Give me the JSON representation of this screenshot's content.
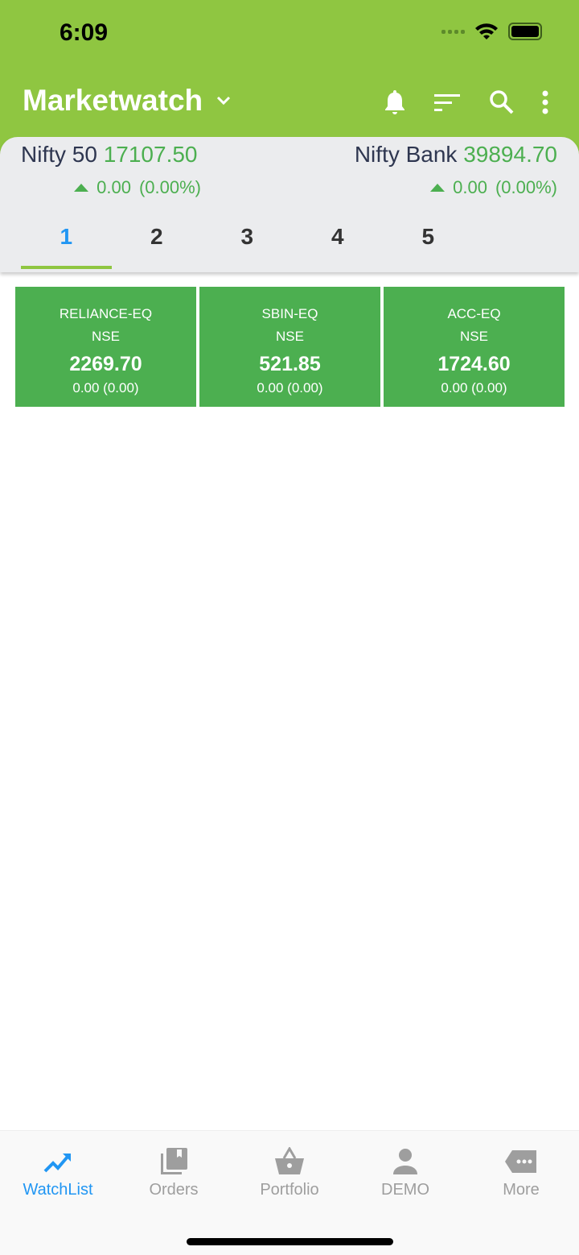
{
  "status": {
    "time": "6:09"
  },
  "header": {
    "title": "Marketwatch"
  },
  "indices": [
    {
      "name": "Nifty 50",
      "value": "17107.50",
      "change": "0.00",
      "pct": "(0.00%)"
    },
    {
      "name": "Nifty Bank",
      "value": "39894.70",
      "change": "0.00",
      "pct": "(0.00%)"
    }
  ],
  "tabs": [
    "1",
    "2",
    "3",
    "4",
    "5"
  ],
  "cards": [
    {
      "symbol": "RELIANCE-EQ",
      "exchange": "NSE",
      "price": "2269.70",
      "change": "0.00 (0.00)"
    },
    {
      "symbol": "SBIN-EQ",
      "exchange": "NSE",
      "price": "521.85",
      "change": "0.00 (0.00)"
    },
    {
      "symbol": "ACC-EQ",
      "exchange": "NSE",
      "price": "1724.60",
      "change": "0.00 (0.00)"
    }
  ],
  "nav": [
    {
      "label": "WatchList",
      "icon": "trending-up-icon"
    },
    {
      "label": "Orders",
      "icon": "library-books-icon"
    },
    {
      "label": "Portfolio",
      "icon": "basket-icon"
    },
    {
      "label": "DEMO",
      "icon": "person-icon"
    },
    {
      "label": "More",
      "icon": "more-label-icon"
    }
  ],
  "colors": {
    "header": "#8fc641",
    "card": "#4caf50",
    "active": "#2196f3"
  }
}
